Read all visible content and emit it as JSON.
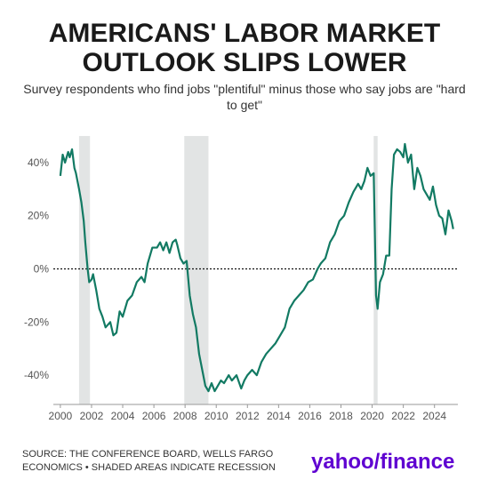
{
  "chart_data": {
    "type": "line",
    "title": "AMERICANS' LABOR MARKET OUTLOOK SLIPS LOWER",
    "subtitle": "Survey respondents who find jobs \"plentiful\" minus those who say jobs are \"hard to get\"",
    "source": "SOURCE: THE CONFERENCE BOARD, WELLS FARGO ECONOMICS • SHADED AREAS INDICATE RECESSION",
    "logo": "yahoo/finance",
    "xlim": [
      1999.55,
      2025.5
    ],
    "xticks": [
      2000,
      2002,
      2004,
      2006,
      2008,
      2010,
      2012,
      2014,
      2016,
      2018,
      2020,
      2022,
      2024
    ],
    "ylim": [
      -51,
      50
    ],
    "yticks": [
      {
        "value": -40,
        "label": "-40%"
      },
      {
        "value": -20,
        "label": "-20%"
      },
      {
        "value": 0,
        "label": "0%"
      },
      {
        "value": 20,
        "label": "20%"
      },
      {
        "value": 40,
        "label": "40%"
      }
    ],
    "zero_line": true,
    "shaded_regions": [
      [
        2001.2,
        2001.9
      ],
      [
        2007.95,
        2009.5
      ],
      [
        2020.1,
        2020.35
      ]
    ],
    "shade_color": "#e2e4e4",
    "series": [
      {
        "color": "#127a63",
        "x": [
          2000.0,
          2000.15,
          2000.3,
          2000.5,
          2000.6,
          2000.75,
          2000.9,
          2001.0,
          2001.2,
          2001.35,
          2001.5,
          2001.6,
          2001.75,
          2001.85,
          2002.0,
          2002.1,
          2002.3,
          2002.5,
          2002.7,
          2002.9,
          2003.2,
          2003.4,
          2003.6,
          2003.8,
          2004.0,
          2004.3,
          2004.6,
          2004.9,
          2005.2,
          2005.4,
          2005.6,
          2005.9,
          2006.2,
          2006.4,
          2006.6,
          2006.8,
          2007.0,
          2007.2,
          2007.4,
          2007.5,
          2007.7,
          2007.9,
          2008.1,
          2008.3,
          2008.5,
          2008.7,
          2008.9,
          2009.1,
          2009.3,
          2009.5,
          2009.7,
          2009.9,
          2010.1,
          2010.3,
          2010.5,
          2010.8,
          2011.0,
          2011.3,
          2011.6,
          2011.8,
          2012.0,
          2012.3,
          2012.6,
          2012.9,
          2013.2,
          2013.5,
          2013.8,
          2014.1,
          2014.4,
          2014.7,
          2015.0,
          2015.3,
          2015.6,
          2015.9,
          2016.2,
          2016.5,
          2016.7,
          2017.0,
          2017.3,
          2017.6,
          2017.9,
          2018.2,
          2018.5,
          2018.8,
          2019.1,
          2019.3,
          2019.5,
          2019.7,
          2019.9,
          2020.1,
          2020.25,
          2020.35,
          2020.5,
          2020.7,
          2020.9,
          2021.1,
          2021.25,
          2021.4,
          2021.6,
          2021.8,
          2022.0,
          2022.1,
          2022.3,
          2022.5,
          2022.7,
          2022.9,
          2023.1,
          2023.3,
          2023.5,
          2023.7,
          2023.9,
          2024.1,
          2024.3,
          2024.5,
          2024.7,
          2024.9,
          2025.1,
          2025.2
        ],
        "values": [
          35,
          43,
          40,
          44,
          42,
          45,
          38,
          36,
          30,
          25,
          18,
          10,
          0,
          -5,
          -4,
          -2,
          -8,
          -15,
          -18,
          -22,
          -20,
          -25,
          -24,
          -16,
          -18,
          -12,
          -10,
          -5,
          -3,
          -5,
          2,
          8,
          8,
          10,
          7,
          10,
          6,
          10,
          11,
          9,
          4,
          2,
          3,
          -10,
          -17,
          -22,
          -32,
          -38,
          -44,
          -46,
          -43,
          -46,
          -44,
          -42,
          -43,
          -40,
          -42,
          -40,
          -45,
          -42,
          -40,
          -38,
          -40,
          -35,
          -32,
          -30,
          -28,
          -25,
          -22,
          -15,
          -12,
          -10,
          -8,
          -5,
          -4,
          0,
          2,
          4,
          10,
          13,
          18,
          20,
          25,
          29,
          32,
          30,
          33,
          38,
          35,
          36,
          -10,
          -15,
          -5,
          -2,
          5,
          5,
          30,
          43,
          45,
          44,
          42,
          47,
          40,
          43,
          30,
          38,
          35,
          30,
          28,
          26,
          31,
          24,
          20,
          19,
          13,
          22,
          18,
          15
        ]
      }
    ]
  }
}
